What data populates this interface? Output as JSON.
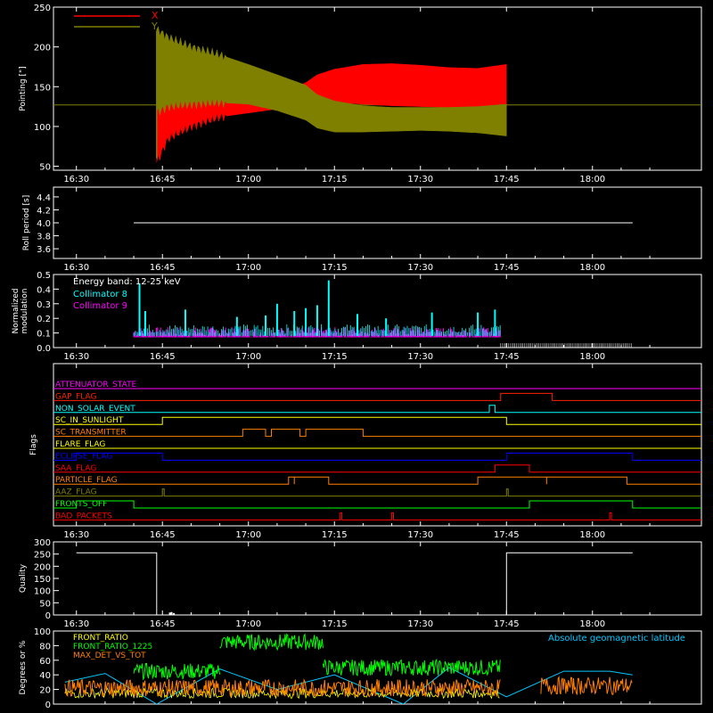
{
  "colors": {
    "background": "#000000",
    "axis": "#ffffff",
    "x_series": "#ff0000",
    "y_series": "#808000",
    "collimator_8": "#00ffff",
    "collimator_9": "#ff00ff",
    "front_ratio": "#ffff00",
    "front_ratio_1225": "#00ff00",
    "max_det_vs_tot": "#ff8000",
    "geomag": "#00c8ff"
  },
  "chart_data": [
    {
      "id": "pointing",
      "type": "line",
      "ylabel": "Pointing [\"]",
      "ylim": [
        45,
        250
      ],
      "yticks": [
        50,
        100,
        150,
        200,
        250
      ],
      "xticks": [
        "16:30",
        "16:45",
        "17:00",
        "17:15",
        "17:30",
        "17:45",
        "18:00"
      ],
      "xlim_minutes": [
        -4,
        109
      ],
      "legend": [
        "X",
        "Y"
      ],
      "series": [
        {
          "name": "X",
          "color_key": "x_series",
          "envelope_x": [
            "16:44",
            "16:46",
            "16:50",
            "16:55",
            "17:00",
            "17:05",
            "17:10",
            "17:12",
            "17:15",
            "17:20",
            "17:25",
            "17:30",
            "17:35",
            "17:40",
            "17:45"
          ],
          "upper": [
            140,
            135,
            132,
            131,
            133,
            140,
            155,
            165,
            172,
            178,
            179,
            177,
            174,
            173,
            178
          ],
          "lower": [
            55,
            85,
            100,
            112,
            117,
            122,
            128,
            130,
            130,
            128,
            126,
            125,
            124,
            123,
            124
          ]
        },
        {
          "name": "Y",
          "color_key": "y_series",
          "envelope_x": [
            "16:44",
            "16:46",
            "16:50",
            "16:55",
            "17:00",
            "17:05",
            "17:10",
            "17:12",
            "17:15",
            "17:20",
            "17:25",
            "17:30",
            "17:35",
            "17:40",
            "17:45"
          ],
          "upper": [
            222,
            212,
            200,
            190,
            178,
            165,
            152,
            140,
            132,
            126,
            124,
            124,
            124,
            125,
            128
          ],
          "lower": [
            118,
            125,
            128,
            130,
            128,
            120,
            108,
            98,
            93,
            93,
            94,
            95,
            94,
            92,
            88
          ]
        }
      ],
      "baseline": 127
    },
    {
      "id": "roll_period",
      "type": "line",
      "ylabel": "Roll period [s]",
      "ylim": [
        3.45,
        4.55
      ],
      "yticks": [
        3.6,
        3.8,
        4.0,
        4.2,
        4.4
      ],
      "xticks": [
        "16:30",
        "16:45",
        "17:00",
        "17:15",
        "17:30",
        "17:45",
        "18:00"
      ],
      "series": [
        {
          "name": "",
          "x": [
            "16:40",
            "18:07"
          ],
          "y": [
            4.0,
            4.0
          ]
        }
      ]
    },
    {
      "id": "modulation",
      "type": "bar",
      "ylabel": "Normalized modulation",
      "ylim": [
        0,
        0.5
      ],
      "yticks": [
        0.0,
        0.1,
        0.2,
        0.3,
        0.4,
        0.5
      ],
      "xticks": [
        "16:30",
        "16:45",
        "17:00",
        "17:15",
        "17:30",
        "17:45",
        "18:00"
      ],
      "annotation": "Energy band: 12-25 keV",
      "legend": [
        "Collimator 8",
        "Collimator 9"
      ],
      "series": [
        {
          "name": "Collimator 8",
          "color_key": "collimator_8",
          "x": [
            "16:41",
            "16:42",
            "16:49",
            "16:58",
            "17:03",
            "17:05",
            "17:08",
            "17:10",
            "17:12",
            "17:14",
            "17:19",
            "17:24",
            "17:32",
            "17:40",
            "17:43"
          ],
          "y": [
            0.44,
            0.25,
            0.26,
            0.21,
            0.22,
            0.3,
            0.25,
            0.27,
            0.29,
            0.46,
            0.23,
            0.2,
            0.24,
            0.24,
            0.26
          ]
        },
        {
          "name": "Collimator 9",
          "color_key": "collimator_9",
          "x_range": [
            "16:40",
            "17:44"
          ],
          "typical": 0.1
        }
      ],
      "noise_range": [
        "17:44",
        "18:07"
      ]
    },
    {
      "id": "flags",
      "type": "line",
      "ylabel": "Flags",
      "xticks": [
        "16:30",
        "16:45",
        "17:00",
        "17:15",
        "17:30",
        "17:45",
        "18:00"
      ],
      "flags": [
        {
          "name": "ATTENUATOR_STATE",
          "color": "#ff00ff",
          "on": []
        },
        {
          "name": "GAP_FLAG",
          "color": "#ff2000",
          "on": [
            [
              "17:44",
              "17:53"
            ]
          ]
        },
        {
          "name": "NON_SOLAR_EVENT",
          "color": "#00ffff",
          "on": [
            [
              "17:42",
              "17:43"
            ]
          ]
        },
        {
          "name": "SC_IN_SUNLIGHT",
          "color": "#ffff00",
          "on": [
            [
              "16:45",
              "17:45"
            ]
          ]
        },
        {
          "name": "SC_TRANSMITTER",
          "color": "#ff8000",
          "on": [
            [
              "16:59",
              "17:03"
            ],
            [
              "17:04",
              "17:09"
            ],
            [
              "17:10",
              "17:20"
            ]
          ]
        },
        {
          "name": "FLARE_FLAG",
          "color": "#ffff00",
          "on": []
        },
        {
          "name": "ECLIPSE_FLAG",
          "color": "#0000ff",
          "on": [
            [
              "16:30",
              "16:45"
            ],
            [
              "17:45",
              "18:07"
            ]
          ]
        },
        {
          "name": "SAA_FLAG",
          "color": "#ff0000",
          "on": [
            [
              "17:43",
              "17:49"
            ]
          ]
        },
        {
          "name": "PARTICLE_FLAG",
          "color": "#ff8000",
          "on": [
            [
              "17:07",
              "17:08"
            ],
            [
              "17:08",
              "17:14"
            ],
            [
              "17:40",
              "17:52"
            ],
            [
              "17:52",
              "18:06"
            ]
          ]
        },
        {
          "name": "AAZ_FLAG",
          "color": "#808000",
          "on": [
            [
              "16:45",
              "16:45.3"
            ],
            [
              "17:45",
              "17:45.3"
            ]
          ]
        },
        {
          "name": "FRONTS_OFF",
          "color": "#00ff00",
          "on": [
            [
              "16:30",
              "16:40"
            ],
            [
              "17:49",
              "18:07"
            ]
          ]
        },
        {
          "name": "BAD_PACKETS",
          "color": "#ff0000",
          "on": [
            [
              "17:16",
              "17:16.3"
            ],
            [
              "17:25",
              "17:25.3"
            ],
            [
              "18:03",
              "18:03.3"
            ]
          ]
        }
      ]
    },
    {
      "id": "quality",
      "type": "line",
      "ylabel": "Quality",
      "ylim": [
        0,
        300
      ],
      "yticks": [
        0,
        50,
        100,
        150,
        200,
        250,
        300
      ],
      "xticks": [
        "16:30",
        "16:45",
        "17:00",
        "17:15",
        "17:30",
        "17:45",
        "18:00"
      ],
      "series": [
        {
          "name": "",
          "x": [
            "16:30",
            "16:44",
            "16:44",
            "17:45",
            "17:45",
            "18:07"
          ],
          "y": [
            255,
            255,
            0,
            0,
            255,
            255
          ]
        }
      ]
    },
    {
      "id": "ratios",
      "type": "line",
      "ylabel": "Degrees or %",
      "ylim": [
        0,
        100
      ],
      "yticks": [
        0,
        20,
        40,
        60,
        80,
        100
      ],
      "legend": [
        "FRONT_RATIO",
        "FRONT_RATIO_1225",
        "MAX_DET_VS_TOT"
      ],
      "annotation": "Absolute geomagnetic latitude",
      "series": [
        {
          "name": "FRONT_RATIO",
          "color_key": "front_ratio"
        },
        {
          "name": "FRONT_RATIO_1225",
          "color_key": "front_ratio_1225",
          "segments": [
            [
              "16:40",
              "16:55",
              45
            ],
            [
              "16:55",
              "17:13",
              85
            ],
            [
              "17:13",
              "17:44",
              50
            ]
          ]
        },
        {
          "name": "MAX_DET_VS_TOT",
          "color_key": "max_det_vs_tot",
          "segments": [
            [
              "16:28",
              "17:44",
              22
            ],
            [
              "17:51",
              "18:07",
              25
            ]
          ]
        }
      ],
      "geomag": {
        "x": [
          "16:28",
          "16:35",
          "16:44",
          "16:55",
          "17:05",
          "17:15",
          "17:27",
          "17:35",
          "17:45",
          "17:55",
          "18:03",
          "18:07"
        ],
        "y": [
          30,
          42,
          0,
          48,
          20,
          40,
          0,
          50,
          10,
          45,
          45,
          40
        ]
      }
    }
  ]
}
